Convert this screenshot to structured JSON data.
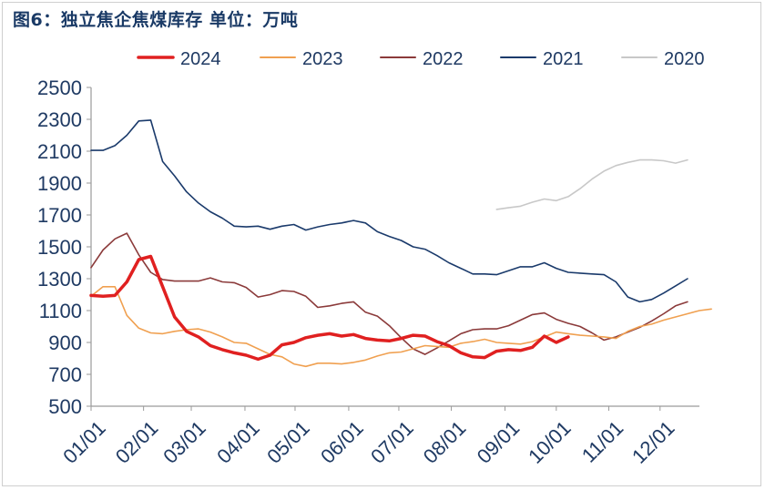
{
  "chart_data": {
    "type": "line",
    "title": "图6：独立焦企焦煤库存 单位：万吨",
    "xlabel": "",
    "ylabel": "万吨",
    "ylim": [
      500,
      2500
    ],
    "yticks": [
      500,
      700,
      900,
      1100,
      1300,
      1500,
      1700,
      1900,
      2100,
      2300,
      2500
    ],
    "x_domain": [
      1,
      52
    ],
    "xticks": [
      {
        "week": 1,
        "label": "01/01"
      },
      {
        "week": 5.4,
        "label": "02/01"
      },
      {
        "week": 9.4,
        "label": "03/01"
      },
      {
        "week": 13.9,
        "label": "04/01"
      },
      {
        "week": 18.1,
        "label": "05/01"
      },
      {
        "week": 22.6,
        "label": "06/01"
      },
      {
        "week": 26.8,
        "label": "07/01"
      },
      {
        "week": 31.2,
        "label": "08/01"
      },
      {
        "week": 35.7,
        "label": "09/01"
      },
      {
        "week": 40.0,
        "label": "10/01"
      },
      {
        "week": 44.4,
        "label": "11/01"
      },
      {
        "week": 48.7,
        "label": "12/01"
      }
    ],
    "series": [
      {
        "name": "2024",
        "color": "#e02020",
        "width": 3.5,
        "points": [
          [
            1,
            1195
          ],
          [
            2,
            1190
          ],
          [
            3,
            1195
          ],
          [
            4,
            1280
          ],
          [
            5,
            1420
          ],
          [
            6,
            1440
          ],
          [
            7,
            1250
          ],
          [
            8,
            1060
          ],
          [
            9,
            970
          ],
          [
            10,
            935
          ],
          [
            11,
            880
          ],
          [
            12,
            855
          ],
          [
            13,
            835
          ],
          [
            14,
            820
          ],
          [
            15,
            795
          ],
          [
            16,
            820
          ],
          [
            17,
            885
          ],
          [
            18,
            900
          ],
          [
            19,
            930
          ],
          [
            20,
            945
          ],
          [
            21,
            955
          ],
          [
            22,
            940
          ],
          [
            23,
            950
          ],
          [
            24,
            925
          ],
          [
            25,
            915
          ],
          [
            26,
            910
          ],
          [
            27,
            925
          ],
          [
            28,
            945
          ],
          [
            29,
            940
          ],
          [
            30,
            905
          ],
          [
            31,
            880
          ],
          [
            32,
            835
          ],
          [
            33,
            810
          ],
          [
            34,
            805
          ],
          [
            35,
            845
          ],
          [
            36,
            855
          ],
          [
            37,
            850
          ],
          [
            38,
            870
          ],
          [
            39,
            940
          ],
          [
            40,
            900
          ],
          [
            41,
            935
          ]
        ]
      },
      {
        "name": "2023",
        "color": "#f0a050",
        "width": 1.6,
        "points": [
          [
            1,
            1190
          ],
          [
            2,
            1250
          ],
          [
            3,
            1250
          ],
          [
            4,
            1070
          ],
          [
            5,
            990
          ],
          [
            6,
            960
          ],
          [
            7,
            955
          ],
          [
            8,
            970
          ],
          [
            9,
            980
          ],
          [
            10,
            985
          ],
          [
            11,
            965
          ],
          [
            12,
            935
          ],
          [
            13,
            900
          ],
          [
            14,
            895
          ],
          [
            15,
            860
          ],
          [
            16,
            825
          ],
          [
            17,
            810
          ],
          [
            18,
            765
          ],
          [
            19,
            750
          ],
          [
            20,
            770
          ],
          [
            21,
            770
          ],
          [
            22,
            765
          ],
          [
            23,
            775
          ],
          [
            24,
            790
          ],
          [
            25,
            815
          ],
          [
            26,
            835
          ],
          [
            27,
            840
          ],
          [
            28,
            860
          ],
          [
            29,
            880
          ],
          [
            30,
            875
          ],
          [
            31,
            870
          ],
          [
            32,
            895
          ],
          [
            33,
            905
          ],
          [
            34,
            920
          ],
          [
            35,
            900
          ],
          [
            36,
            895
          ],
          [
            37,
            890
          ],
          [
            38,
            905
          ],
          [
            39,
            935
          ],
          [
            40,
            965
          ],
          [
            41,
            955
          ],
          [
            42,
            945
          ],
          [
            43,
            940
          ],
          [
            44,
            935
          ],
          [
            45,
            925
          ],
          [
            46,
            970
          ],
          [
            47,
            1000
          ],
          [
            48,
            1015
          ],
          [
            49,
            1040
          ],
          [
            50,
            1060
          ],
          [
            51,
            1080
          ],
          [
            52,
            1100
          ],
          [
            53,
            1110
          ]
        ]
      },
      {
        "name": "2022",
        "color": "#8b3a3a",
        "width": 1.6,
        "points": [
          [
            1,
            1370
          ],
          [
            2,
            1480
          ],
          [
            3,
            1550
          ],
          [
            4,
            1585
          ],
          [
            5,
            1450
          ],
          [
            6,
            1340
          ],
          [
            7,
            1295
          ],
          [
            8,
            1285
          ],
          [
            9,
            1285
          ],
          [
            10,
            1285
          ],
          [
            11,
            1305
          ],
          [
            12,
            1280
          ],
          [
            13,
            1275
          ],
          [
            14,
            1245
          ],
          [
            15,
            1185
          ],
          [
            16,
            1200
          ],
          [
            17,
            1225
          ],
          [
            18,
            1220
          ],
          [
            19,
            1190
          ],
          [
            20,
            1120
          ],
          [
            21,
            1130
          ],
          [
            22,
            1145
          ],
          [
            23,
            1155
          ],
          [
            24,
            1090
          ],
          [
            25,
            1065
          ],
          [
            26,
            1005
          ],
          [
            27,
            930
          ],
          [
            28,
            860
          ],
          [
            29,
            825
          ],
          [
            30,
            865
          ],
          [
            31,
            910
          ],
          [
            32,
            955
          ],
          [
            33,
            980
          ],
          [
            34,
            985
          ],
          [
            35,
            985
          ],
          [
            36,
            1005
          ],
          [
            37,
            1040
          ],
          [
            38,
            1075
          ],
          [
            39,
            1085
          ],
          [
            40,
            1045
          ],
          [
            41,
            1020
          ],
          [
            42,
            1000
          ],
          [
            43,
            960
          ],
          [
            44,
            915
          ],
          [
            45,
            935
          ],
          [
            46,
            965
          ],
          [
            47,
            995
          ],
          [
            48,
            1035
          ],
          [
            49,
            1080
          ],
          [
            50,
            1130
          ],
          [
            51,
            1155
          ]
        ]
      },
      {
        "name": "2021",
        "color": "#1a3a6b",
        "width": 1.6,
        "points": [
          [
            1,
            2105
          ],
          [
            2,
            2105
          ],
          [
            3,
            2135
          ],
          [
            4,
            2200
          ],
          [
            5,
            2290
          ],
          [
            6,
            2295
          ],
          [
            7,
            2035
          ],
          [
            8,
            1945
          ],
          [
            9,
            1845
          ],
          [
            10,
            1775
          ],
          [
            11,
            1720
          ],
          [
            12,
            1680
          ],
          [
            13,
            1630
          ],
          [
            14,
            1625
          ],
          [
            15,
            1630
          ],
          [
            16,
            1610
          ],
          [
            17,
            1630
          ],
          [
            18,
            1640
          ],
          [
            19,
            1605
          ],
          [
            20,
            1625
          ],
          [
            21,
            1640
          ],
          [
            22,
            1650
          ],
          [
            23,
            1665
          ],
          [
            24,
            1650
          ],
          [
            25,
            1595
          ],
          [
            26,
            1565
          ],
          [
            27,
            1540
          ],
          [
            28,
            1500
          ],
          [
            29,
            1485
          ],
          [
            30,
            1445
          ],
          [
            31,
            1400
          ],
          [
            32,
            1365
          ],
          [
            33,
            1330
          ],
          [
            34,
            1330
          ],
          [
            35,
            1325
          ],
          [
            36,
            1350
          ],
          [
            37,
            1375
          ],
          [
            38,
            1375
          ],
          [
            39,
            1400
          ],
          [
            40,
            1365
          ],
          [
            41,
            1340
          ],
          [
            42,
            1335
          ],
          [
            43,
            1330
          ],
          [
            44,
            1325
          ],
          [
            45,
            1280
          ],
          [
            46,
            1185
          ],
          [
            47,
            1155
          ],
          [
            48,
            1170
          ],
          [
            49,
            1210
          ],
          [
            50,
            1255
          ],
          [
            51,
            1300
          ]
        ]
      },
      {
        "name": "2020",
        "color": "#c8c8c8",
        "width": 1.6,
        "points": [
          [
            35,
            1735
          ],
          [
            36,
            1745
          ],
          [
            37,
            1755
          ],
          [
            38,
            1780
          ],
          [
            39,
            1800
          ],
          [
            40,
            1790
          ],
          [
            41,
            1815
          ],
          [
            42,
            1865
          ],
          [
            43,
            1925
          ],
          [
            44,
            1975
          ],
          [
            45,
            2010
          ],
          [
            46,
            2030
          ],
          [
            47,
            2045
          ],
          [
            48,
            2045
          ],
          [
            49,
            2040
          ],
          [
            50,
            2025
          ],
          [
            51,
            2045
          ]
        ]
      }
    ]
  }
}
